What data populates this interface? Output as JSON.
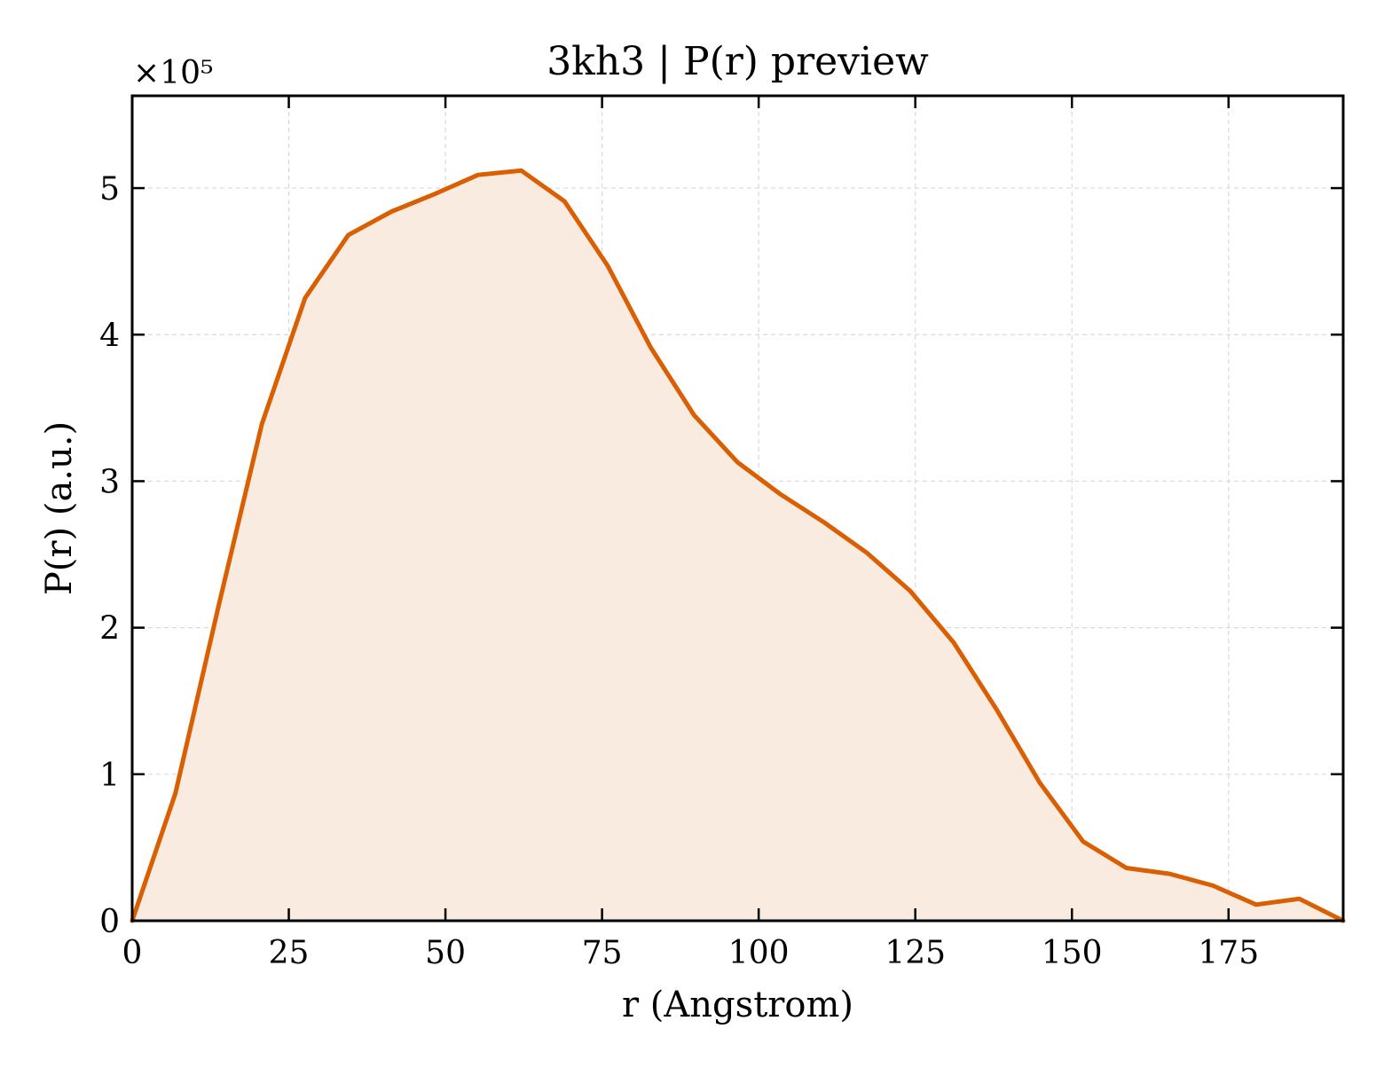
{
  "chart_data": {
    "type": "area",
    "title": "3kh3 | P(r) preview",
    "xlabel": "r (Angstrom)",
    "ylabel": "P(r) (a.u.)",
    "y_scale_label": "×10⁵",
    "xlim": [
      0,
      193.3
    ],
    "ylim": [
      0,
      5.63
    ],
    "y_unit_multiplier": 100000,
    "x_ticks": [
      0,
      25,
      50,
      75,
      100,
      125,
      150,
      175
    ],
    "y_ticks": [
      0,
      1,
      2,
      3,
      4,
      5
    ],
    "grid": true,
    "legend": "none",
    "series": [
      {
        "x": [
          0,
          6.9,
          13.8,
          20.7,
          27.6,
          34.5,
          41.4,
          48.3,
          55.2,
          62.1,
          69.0,
          75.9,
          82.8,
          89.7,
          96.6,
          103.5,
          110.4,
          117.3,
          124.2,
          131.1,
          138.0,
          144.9,
          151.8,
          158.7,
          165.6,
          172.5,
          179.4,
          186.3,
          193.3
        ],
        "y": [
          0,
          0.87,
          2.15,
          3.39,
          4.25,
          4.68,
          4.84,
          4.96,
          5.09,
          5.12,
          4.91,
          4.47,
          3.91,
          3.45,
          3.13,
          2.91,
          2.72,
          2.51,
          2.25,
          1.9,
          1.44,
          0.94,
          0.54,
          0.36,
          0.32,
          0.24,
          0.11,
          0.15,
          0
        ]
      }
    ],
    "colors": {
      "line": "#d95f02",
      "fill": "#f9ebe0",
      "grid": "#d9d9d9",
      "axes": "#000000"
    }
  }
}
